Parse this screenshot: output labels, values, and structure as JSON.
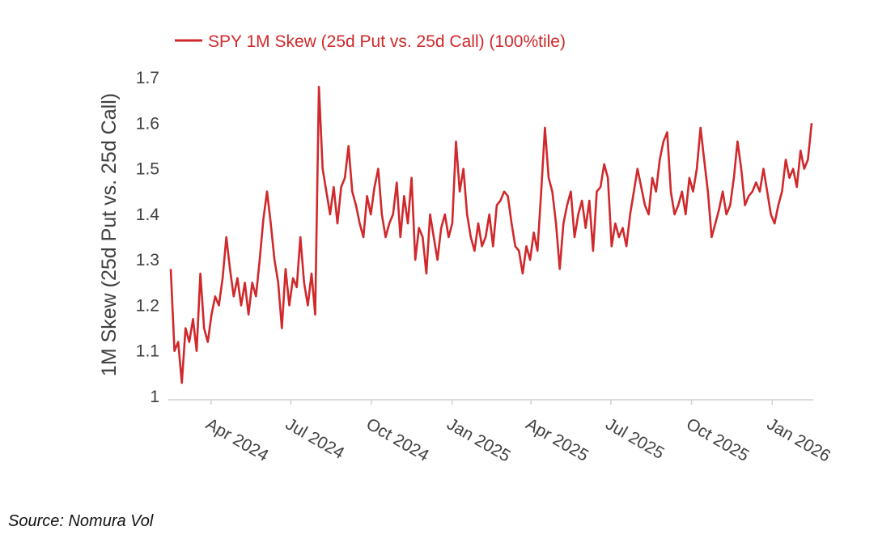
{
  "chart_data": {
    "type": "line",
    "title": "",
    "xlabel": "",
    "ylabel": "1M Skew (25d Put vs. 25d Call)",
    "ylim": [
      1.0,
      1.7
    ],
    "yticks": [
      "1",
      "1.1",
      "1.2",
      "1.3",
      "1.4",
      "1.5",
      "1.6",
      "1.7"
    ],
    "xlim": [
      "2024-02-15",
      "2026-02-15"
    ],
    "xticks": [
      {
        "label": "Apr 2024",
        "date": "2024-04-01"
      },
      {
        "label": "Jul 2024",
        "date": "2024-07-01"
      },
      {
        "label": "Oct 2024",
        "date": "2024-10-01"
      },
      {
        "label": "Jan 2025",
        "date": "2025-01-01"
      },
      {
        "label": "Apr 2025",
        "date": "2025-04-01"
      },
      {
        "label": "Jul 2025",
        "date": "2025-07-01"
      },
      {
        "label": "Oct 2025",
        "date": "2025-10-01"
      },
      {
        "label": "Jan 2026",
        "date": "2026-01-01"
      }
    ],
    "grid": false,
    "legend": "top",
    "series": [
      {
        "name": "SPY 1M Skew (25d Put vs. 25d Call) (100%tile)",
        "color": "#d0282b",
        "start": "2024-02-15",
        "end": "2026-02-15",
        "values": [
          1.28,
          1.1,
          1.12,
          1.03,
          1.15,
          1.12,
          1.17,
          1.1,
          1.27,
          1.15,
          1.12,
          1.18,
          1.22,
          1.2,
          1.26,
          1.35,
          1.28,
          1.22,
          1.26,
          1.2,
          1.25,
          1.18,
          1.25,
          1.22,
          1.3,
          1.39,
          1.45,
          1.38,
          1.3,
          1.25,
          1.15,
          1.28,
          1.2,
          1.26,
          1.24,
          1.35,
          1.25,
          1.2,
          1.27,
          1.18,
          1.68,
          1.5,
          1.45,
          1.4,
          1.46,
          1.38,
          1.46,
          1.48,
          1.55,
          1.45,
          1.42,
          1.38,
          1.35,
          1.44,
          1.4,
          1.46,
          1.5,
          1.4,
          1.35,
          1.38,
          1.4,
          1.47,
          1.35,
          1.44,
          1.38,
          1.48,
          1.3,
          1.37,
          1.35,
          1.27,
          1.4,
          1.35,
          1.3,
          1.37,
          1.4,
          1.35,
          1.38,
          1.56,
          1.45,
          1.5,
          1.4,
          1.35,
          1.32,
          1.38,
          1.33,
          1.35,
          1.4,
          1.33,
          1.42,
          1.43,
          1.45,
          1.44,
          1.38,
          1.33,
          1.32,
          1.27,
          1.33,
          1.3,
          1.36,
          1.32,
          1.45,
          1.59,
          1.48,
          1.45,
          1.38,
          1.28,
          1.38,
          1.42,
          1.45,
          1.35,
          1.4,
          1.43,
          1.37,
          1.43,
          1.32,
          1.45,
          1.46,
          1.51,
          1.48,
          1.33,
          1.38,
          1.35,
          1.37,
          1.33,
          1.4,
          1.45,
          1.5,
          1.46,
          1.42,
          1.4,
          1.48,
          1.45,
          1.52,
          1.56,
          1.58,
          1.45,
          1.4,
          1.42,
          1.45,
          1.4,
          1.48,
          1.45,
          1.5,
          1.59,
          1.52,
          1.45,
          1.35,
          1.38,
          1.41,
          1.45,
          1.4,
          1.42,
          1.48,
          1.56,
          1.5,
          1.42,
          1.44,
          1.45,
          1.47,
          1.45,
          1.5,
          1.45,
          1.4,
          1.38,
          1.42,
          1.45,
          1.52,
          1.48,
          1.5,
          1.46,
          1.54,
          1.5,
          1.52,
          1.6
        ]
      }
    ]
  },
  "source": "Source: Nomura Vol"
}
